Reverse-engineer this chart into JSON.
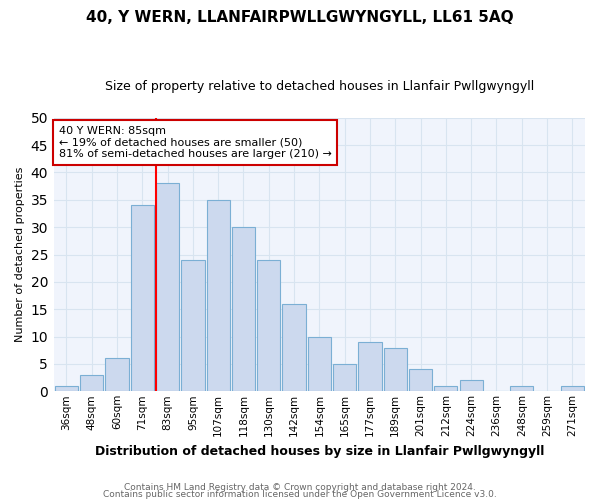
{
  "title": "40, Y WERN, LLANFAIRPWLLGWYNGYLL, LL61 5AQ",
  "subtitle": "Size of property relative to detached houses in Llanfair Pwllgwyngyll",
  "xlabel": "Distribution of detached houses by size in Llanfair Pwllgwyngyll",
  "ylabel": "Number of detached properties",
  "footnote1": "Contains HM Land Registry data © Crown copyright and database right 2024.",
  "footnote2": "Contains public sector information licensed under the Open Government Licence v3.0.",
  "bar_labels": [
    "36sqm",
    "48sqm",
    "60sqm",
    "71sqm",
    "83sqm",
    "95sqm",
    "107sqm",
    "118sqm",
    "130sqm",
    "142sqm",
    "154sqm",
    "165sqm",
    "177sqm",
    "189sqm",
    "201sqm",
    "212sqm",
    "224sqm",
    "236sqm",
    "248sqm",
    "259sqm",
    "271sqm"
  ],
  "bar_values": [
    1,
    3,
    6,
    34,
    38,
    24,
    35,
    30,
    24,
    16,
    10,
    5,
    9,
    8,
    4,
    1,
    2,
    0,
    1,
    0,
    1
  ],
  "bar_color": "#ccd9ee",
  "bar_edge_color": "#7bafd4",
  "red_line_index": 4,
  "annotation_title": "40 Y WERN: 85sqm",
  "annotation_line1": "← 19% of detached houses are smaller (50)",
  "annotation_line2": "81% of semi-detached houses are larger (210) →",
  "ylim": [
    0,
    50
  ],
  "yticks": [
    0,
    5,
    10,
    15,
    20,
    25,
    30,
    35,
    40,
    45,
    50
  ],
  "background_color": "#ffffff",
  "plot_bg_color": "#f0f4fc",
  "grid_color": "#d8e4f0",
  "title_fontsize": 11,
  "subtitle_fontsize": 9
}
